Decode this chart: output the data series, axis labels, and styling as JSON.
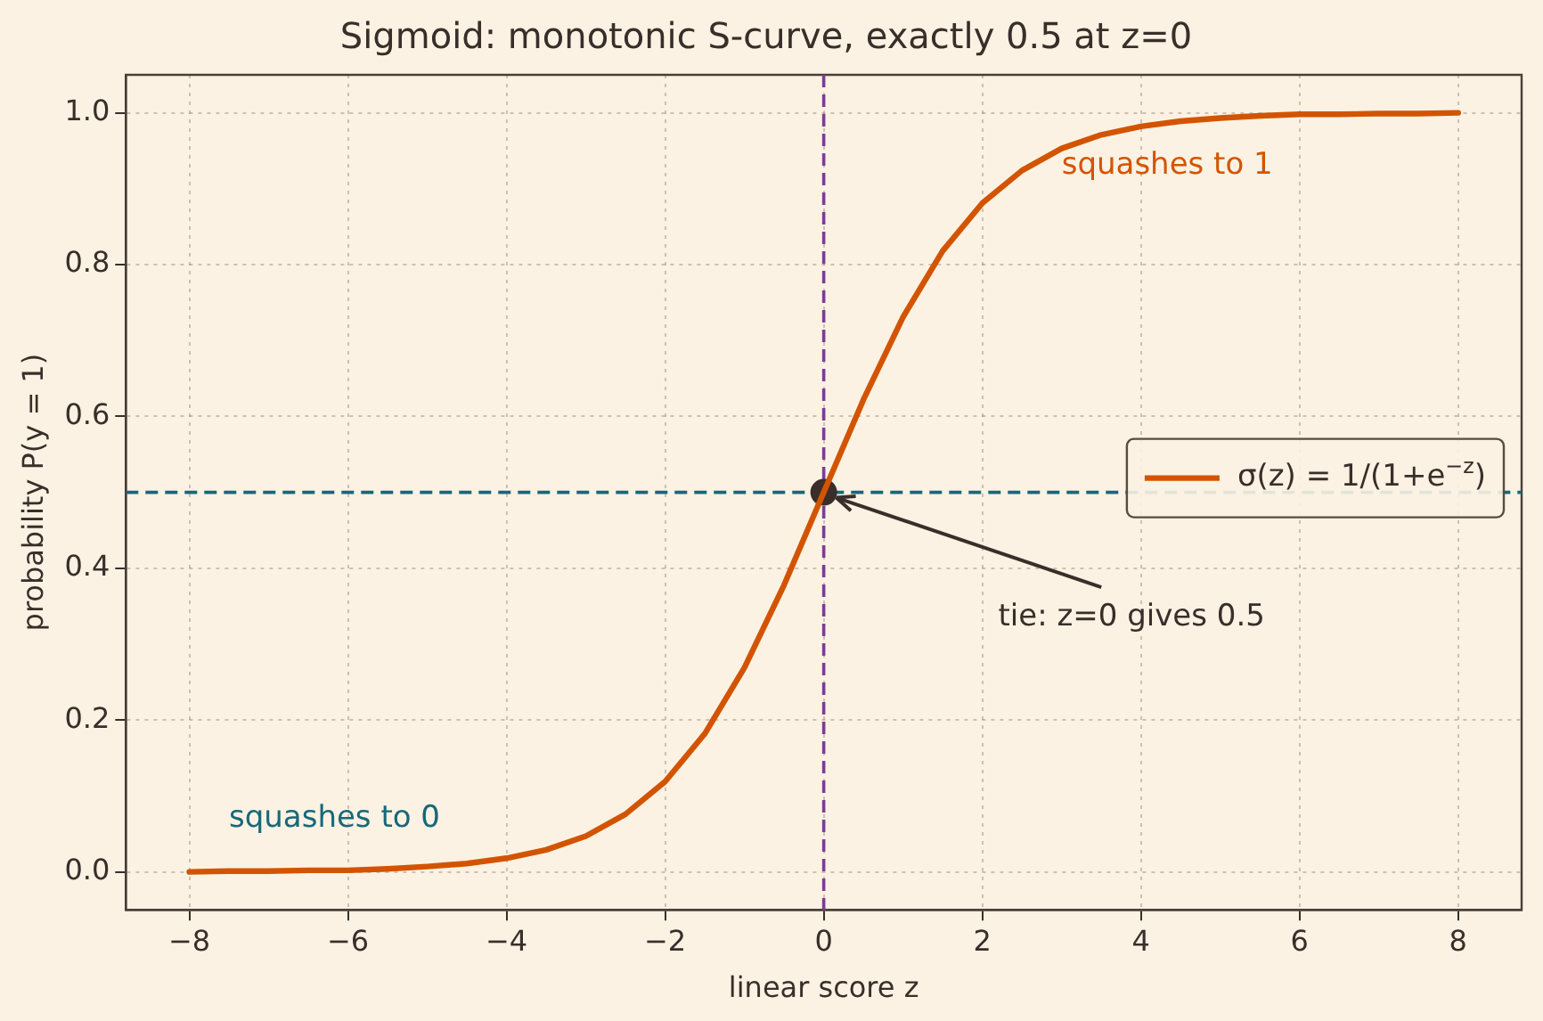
{
  "chart_data": {
    "type": "line",
    "title": "Sigmoid: monotonic S-curve, exactly 0.5 at z=0",
    "xlabel": "linear score z",
    "ylabel": "probability P(y = 1)",
    "series": [
      {
        "name": "σ(z) = 1/(1+e$^{−z}$)",
        "color": "#d35400",
        "x": [
          -8,
          -7.5,
          -7,
          -6.5,
          -6,
          -5.5,
          -5,
          -4.5,
          -4,
          -3.5,
          -3,
          -2.5,
          -2,
          -1.5,
          -1,
          -0.5,
          0,
          0.5,
          1,
          1.5,
          2,
          2.5,
          3,
          3.5,
          4,
          4.5,
          5,
          5.5,
          6,
          6.5,
          7,
          7.5,
          8
        ],
        "values": [
          0.0,
          0.001,
          0.001,
          0.002,
          0.002,
          0.004,
          0.007,
          0.011,
          0.018,
          0.029,
          0.047,
          0.076,
          0.119,
          0.182,
          0.269,
          0.378,
          0.5,
          0.622,
          0.731,
          0.818,
          0.881,
          0.924,
          0.953,
          0.971,
          0.982,
          0.989,
          0.993,
          0.996,
          0.998,
          0.998,
          0.999,
          0.999,
          1.0
        ]
      },
      {
        "type": "scatter",
        "color": "#3a2e2a",
        "x": [
          0
        ],
        "values": [
          0.5
        ],
        "marker": "circle"
      }
    ],
    "ref_lines": [
      {
        "axis": "x",
        "value": 0,
        "color": "#7d3c98",
        "line_style": "dashed"
      },
      {
        "axis": "y",
        "value": 0.5,
        "color": "#17687a",
        "line_style": "dashed"
      }
    ],
    "annotations": [
      "squashes to 1",
      "squashes to 0",
      {
        "text": "tie: z=0 gives 0.5",
        "x": 0,
        "y": 0.5
      }
    ],
    "xlim": [
      -8.8,
      8.8
    ],
    "xticks": [
      {
        "value": -8,
        "label": "−8"
      },
      {
        "value": -6,
        "label": "−6"
      },
      {
        "value": -4,
        "label": "−4"
      },
      {
        "value": -2,
        "label": "−2"
      },
      0,
      2,
      4,
      6,
      8
    ],
    "ylim": [
      -0.05,
      1.05
    ],
    "yticks": [
      {
        "value": 0,
        "label": "0.0"
      },
      {
        "value": 0.2,
        "label": "0.2"
      },
      {
        "value": 0.4,
        "label": "0.4"
      },
      {
        "value": 0.6,
        "label": "0.6"
      },
      {
        "value": 0.8,
        "label": "0.8"
      },
      {
        "value": 1,
        "label": "1.0"
      }
    ],
    "grid": true,
    "legend": "right",
    "marker": "none",
    "line_style": "solid"
  }
}
